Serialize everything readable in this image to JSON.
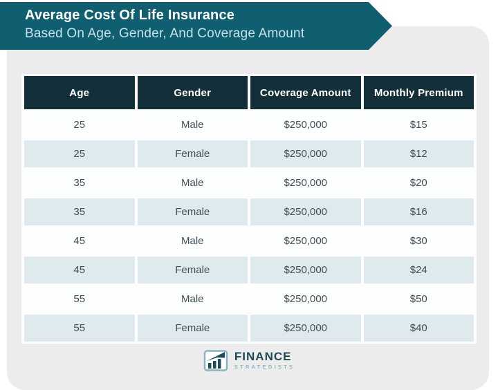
{
  "banner": {
    "title": "Average Cost Of Life Insurance",
    "subtitle": "Based On Age, Gender, And Coverage Amount"
  },
  "table": {
    "headers": [
      "Age",
      "Gender",
      "Coverage Amount",
      "Monthly Premium"
    ],
    "rows": [
      [
        "25",
        "Male",
        "$250,000",
        "$15"
      ],
      [
        "25",
        "Female",
        "$250,000",
        "$12"
      ],
      [
        "35",
        "Male",
        "$250,000",
        "$20"
      ],
      [
        "35",
        "Female",
        "$250,000",
        "$16"
      ],
      [
        "45",
        "Male",
        "$250,000",
        "$30"
      ],
      [
        "45",
        "Female",
        "$250,000",
        "$24"
      ],
      [
        "55",
        "Male",
        "$250,000",
        "$50"
      ],
      [
        "55",
        "Female",
        "$250,000",
        "$40"
      ]
    ]
  },
  "footer": {
    "brand_name": "FINANCE",
    "brand_subtitle": "STRATEGISTS",
    "logo_icon": "bar-chart-trend-icon"
  },
  "colors": {
    "banner_bg": "#0f5f70",
    "banner_title_color": "#ffffff",
    "banner_subtitle_color": "#c6e3ea",
    "card_bg": "#ececec",
    "table_header_bg": "#122f3a",
    "row_bg": "#fdfefe",
    "row_alt_bg": "#dfeaee",
    "cell_text_color": "#3f4e55",
    "brand_color": "#1d4956",
    "brand_sub_color": "#8fb5bf"
  },
  "chart_data": {
    "type": "table",
    "title": "Average Cost Of Life Insurance",
    "subtitle": "Based On Age, Gender, And Coverage Amount",
    "columns": [
      "Age",
      "Gender",
      "Coverage Amount",
      "Monthly Premium"
    ],
    "rows": [
      [
        25,
        "Male",
        "$250,000",
        "$15"
      ],
      [
        25,
        "Female",
        "$250,000",
        "$12"
      ],
      [
        35,
        "Male",
        "$250,000",
        "$20"
      ],
      [
        35,
        "Female",
        "$250,000",
        "$16"
      ],
      [
        45,
        "Male",
        "$250,000",
        "$30"
      ],
      [
        45,
        "Female",
        "$250,000",
        "$24"
      ],
      [
        55,
        "Male",
        "$250,000",
        "$50"
      ],
      [
        55,
        "Female",
        "$250,000",
        "$40"
      ]
    ]
  }
}
